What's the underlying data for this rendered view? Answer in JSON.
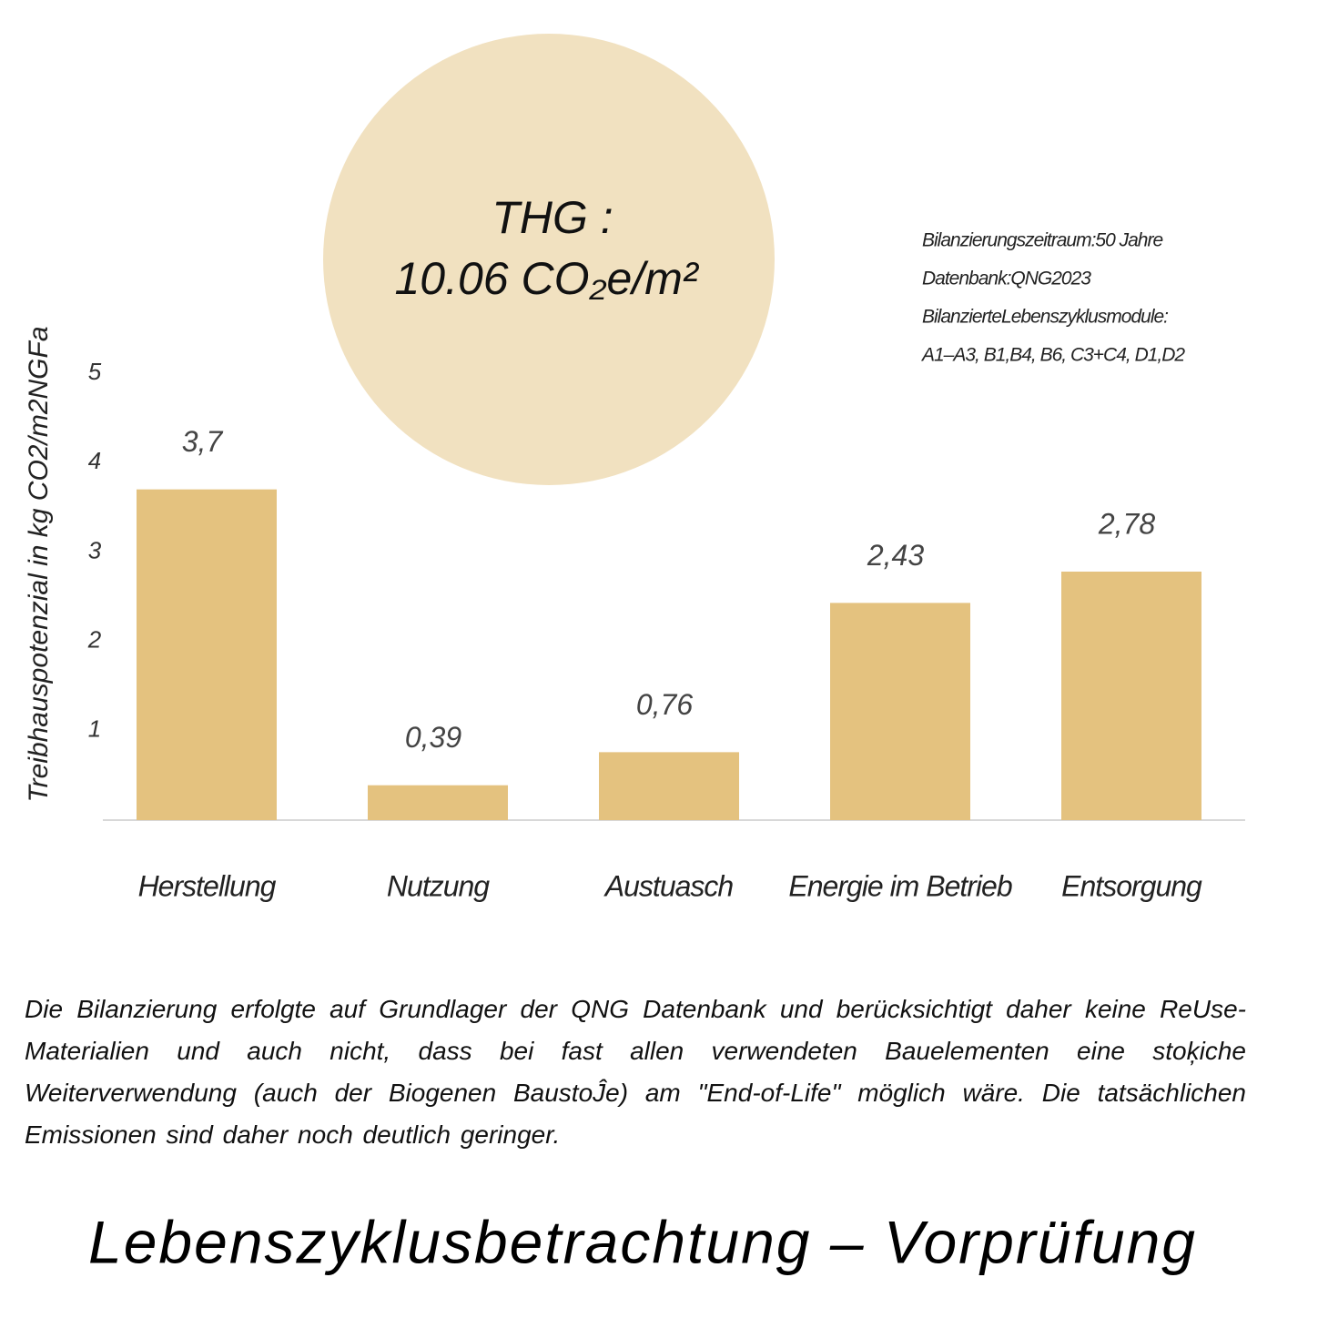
{
  "chart_data": {
    "type": "bar",
    "title": "Lebenszyklusbetrachtung – Vorprüfung",
    "ylabel": "Treibhauspotenzial in kg CO2/m2NGFa",
    "categories": [
      "Herstellung",
      "Nutzung",
      "Austuasch",
      "Energie im Betrieb",
      "Entsorgung"
    ],
    "values": [
      3.7,
      0.39,
      0.76,
      2.43,
      2.78
    ],
    "value_labels": [
      "3,7",
      "0,39",
      "0,76",
      "2,43",
      "2,78"
    ],
    "color": "#e4c27f",
    "ylim": [
      0,
      5
    ],
    "yticks": [
      1,
      2,
      3,
      4,
      5
    ],
    "grid": false,
    "highlight": [
      "THG :",
      "10.06 CO₂e/m²"
    ],
    "info": [
      "Bilanzierungszeitraum:50 Jahre",
      "Datenbank:QNG2023",
      "BilanzierteLebenszyklusmodule:",
      "A1–A3, B1,B4, B6, C3+C4, D1,D2"
    ],
    "description": "Die Bilanzierung erfolgte auf Grundlager der QNG Datenbank und berücksichtigt daher keine ReUse-Materialien und auch nicht, dass bei fast allen verwendeten Bauelementen eine stoķiche Weiterverwendung (auch der Biogenen BaustoĴe) am \"End-of-Life\" möglich wäre. Die tatsächlichen Emissionen sind daher noch deutlich geringer."
  }
}
